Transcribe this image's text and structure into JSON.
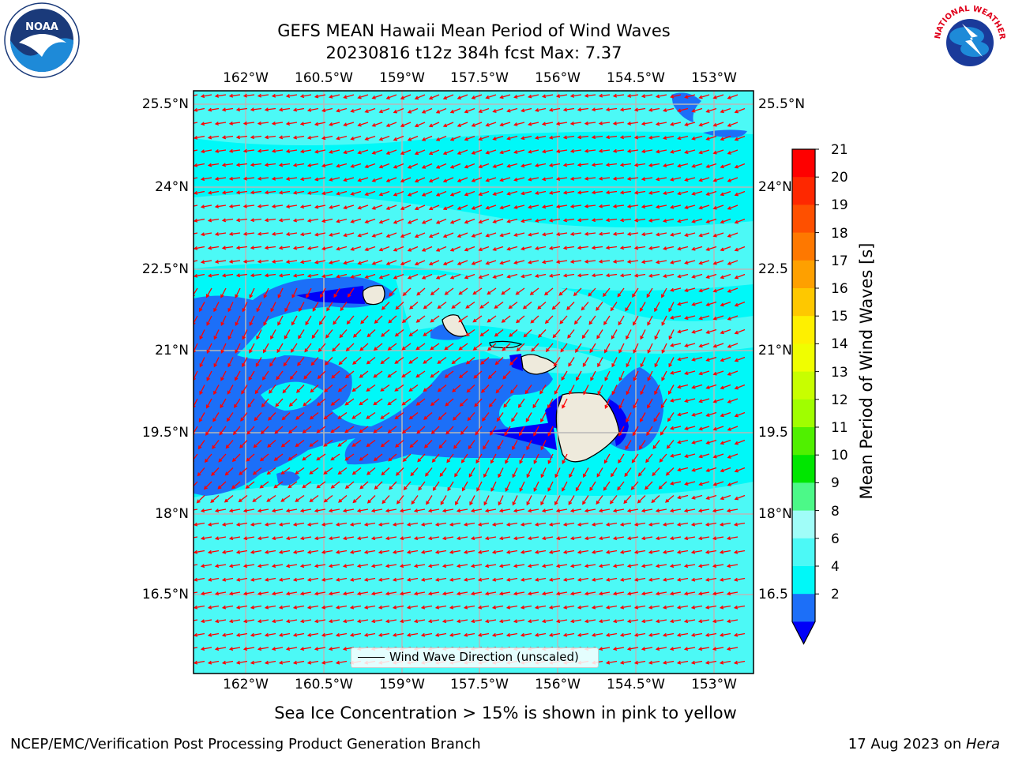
{
  "title_line1": "GEFS MEAN Hawaii Mean Period of Wind Waves",
  "title_line2": "20230816 t12z 384h fcst   Max: 7.37",
  "map": {
    "lon_ticks": [
      "162°W",
      "160.5°W",
      "159°W",
      "157.5°W",
      "156°W",
      "154.5°W",
      "153°W"
    ],
    "lat_ticks": [
      "25.5°N",
      "24°N",
      "22.5°N",
      "21°N",
      "19.5°N",
      "18°N",
      "16.5°N"
    ],
    "lat_ticks_right": [
      "25.5°N",
      "24°N",
      "22.5",
      "21°N",
      "19.5",
      "18°N",
      "16.5"
    ],
    "ocean_colors": {
      "light": "#4cf9f6",
      "cyan": "#00f8f8",
      "blue": "#1c6ff8",
      "dark": "#0000f8",
      "land": "#eeeadc"
    },
    "arrow_color": "#ff0000",
    "legend_label": "Wind Wave Direction (unscaled)"
  },
  "colorbar": {
    "title": "Mean Period of Wind Waves [s]",
    "labels": [
      "21",
      "20",
      "19",
      "18",
      "17",
      "16",
      "15",
      "14",
      "13",
      "12",
      "11",
      "10",
      "9",
      "8",
      "6",
      "4",
      "2"
    ],
    "colors": [
      "#fe0000",
      "#fe2800",
      "#fe5000",
      "#fe7800",
      "#fea000",
      "#fec800",
      "#fef000",
      "#f0fe00",
      "#c8fe00",
      "#a0fe00",
      "#50f000",
      "#00e600",
      "#4cf988",
      "#a0fdf8",
      "#4cf9f6",
      "#00f8f8",
      "#1c6ff8"
    ],
    "under_color": "#0000f8"
  },
  "note": "Sea Ice Concentration > 15% is shown in pink to yellow",
  "footer_left": "NCEP/EMC/Verification Post Processing Product Generation Branch",
  "footer_date": "17 Aug 2023 on ",
  "footer_host": "Hera",
  "logos": {
    "noaa_text": "NOAA",
    "nws_text": "NATIONAL WEATHER SERVICE"
  }
}
